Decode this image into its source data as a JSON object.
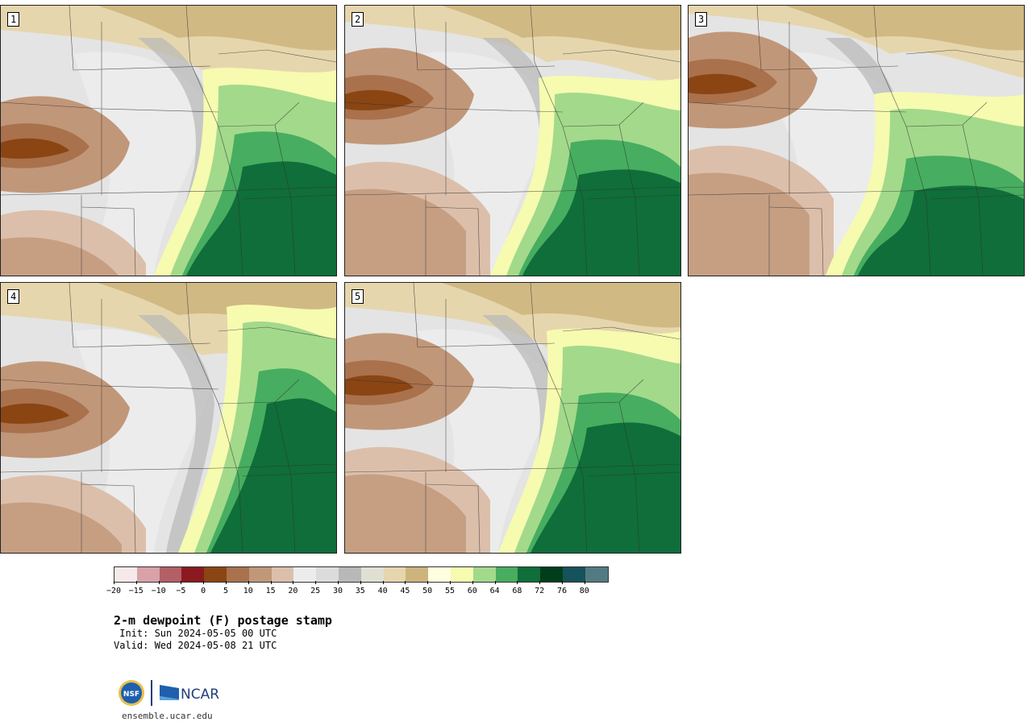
{
  "panels": [
    {
      "label": "1"
    },
    {
      "label": "2"
    },
    {
      "label": "3"
    },
    {
      "label": "4"
    },
    {
      "label": "5"
    }
  ],
  "colorbar": {
    "colors": [
      "#f5e9ea",
      "#d9a1a8",
      "#b35f66",
      "#8a1a20",
      "#8a4513",
      "#a9714c",
      "#c19779",
      "#dcbfaa",
      "#ececec",
      "#dcdcdc",
      "#b8b8b8",
      "#dfdfd3",
      "#e6d6ad",
      "#cdb47c",
      "#ffffe0",
      "#f6fbb0",
      "#a3d98b",
      "#47ad60",
      "#0f6e39",
      "#003d1c",
      "#15525a",
      "#527a82"
    ],
    "ticks": [
      "-20",
      "-15",
      "-10",
      "-5",
      "0",
      "5",
      "10",
      "15",
      "20",
      "25",
      "30",
      "35",
      "40",
      "45",
      "50",
      "55",
      "60",
      "64",
      "68",
      "72",
      "76",
      "80"
    ]
  },
  "title": "2-m dewpoint (F) postage stamp",
  "init": " Init: Sun 2024-05-05 00 UTC",
  "valid": "Valid: Wed 2024-05-08 21 UTC",
  "logos": {
    "nsf": "NSF",
    "ncar": "NCAR"
  },
  "url": "ensemble.ucar.edu"
}
